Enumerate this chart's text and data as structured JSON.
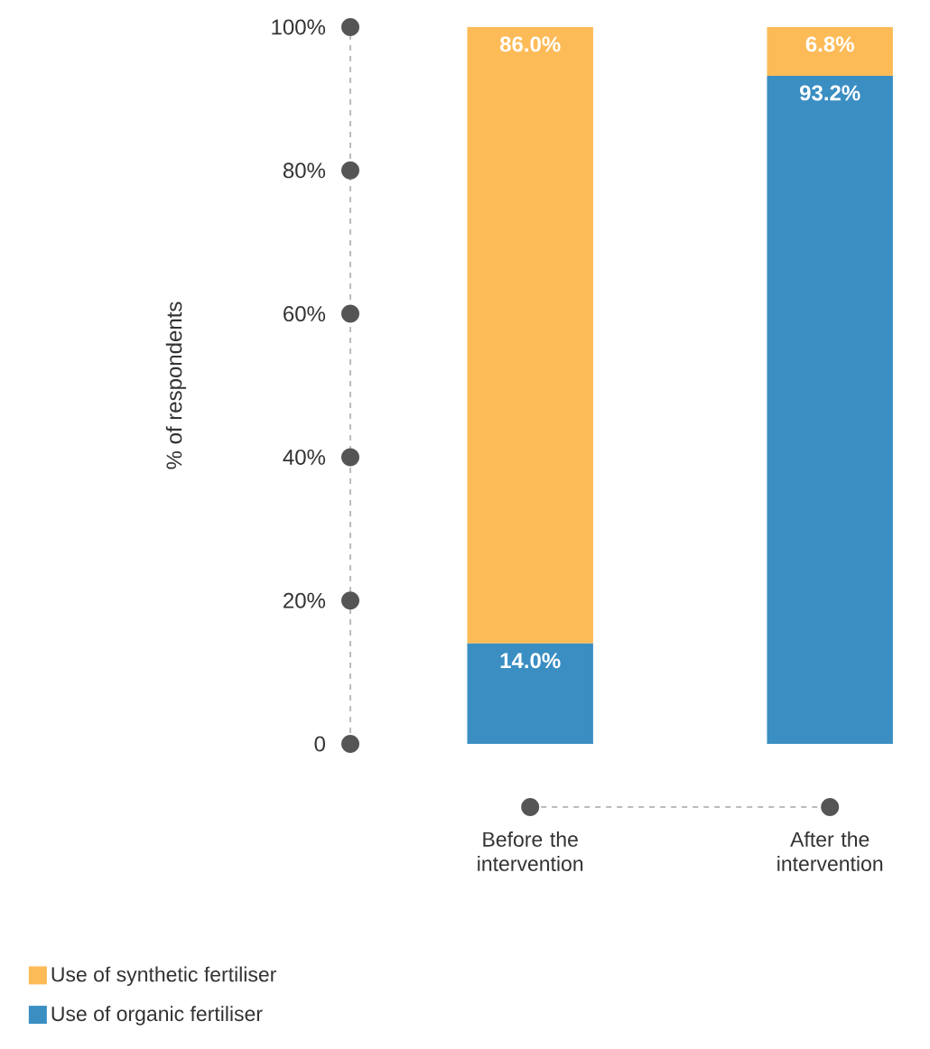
{
  "chart_data": {
    "type": "bar",
    "stacked": true,
    "ylabel": "% of respondents",
    "categories": [
      "Before the intervention",
      "After the intervention"
    ],
    "series": [
      {
        "name": "Use of organic fertiliser",
        "color": "#3a8ec2",
        "values": [
          14.0,
          93.2
        ],
        "value_labels": [
          "14.0%",
          "93.2%"
        ]
      },
      {
        "name": "Use of synthetic fertiliser",
        "color": "#fdbb58",
        "values": [
          86.0,
          6.8
        ],
        "value_labels": [
          "86.0%",
          "6.8%"
        ]
      }
    ],
    "ylim": [
      0,
      100
    ],
    "yticks": [
      0,
      {
        "value": 20,
        "label": "20%"
      },
      {
        "value": 40,
        "label": "40%"
      },
      {
        "value": 60,
        "label": "60%"
      },
      {
        "value": 80,
        "label": "80%"
      },
      {
        "value": 100,
        "label": "100%"
      }
    ],
    "legend": "bottom left"
  }
}
